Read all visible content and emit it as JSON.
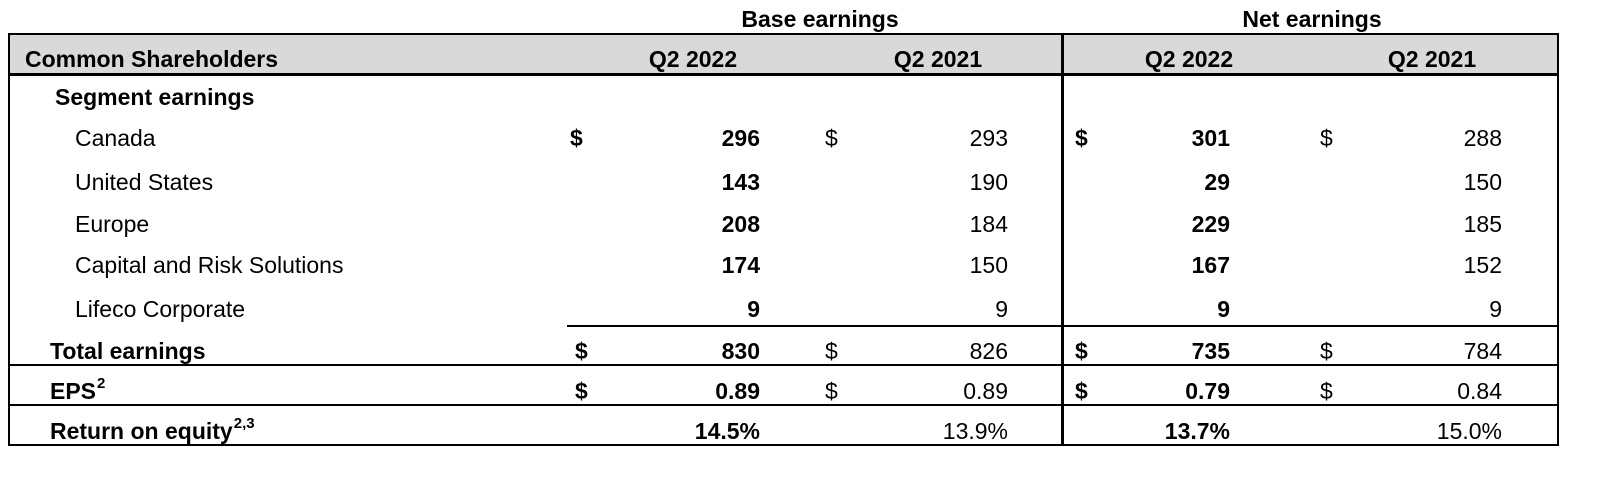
{
  "groups": {
    "base": "Base earnings",
    "net": "Net earnings"
  },
  "header": {
    "label": "Common Shareholders",
    "base_q2_2022": "Q2 2022",
    "base_q2_2021": "Q2 2021",
    "net_q2_2022": "Q2 2022",
    "net_q2_2021": "Q2 2021"
  },
  "segment_title": "Segment earnings",
  "currency": "$",
  "rows": [
    {
      "label": "Canada",
      "base_2022": "296",
      "base_2021": "293",
      "net_2022": "301",
      "net_2021": "288"
    },
    {
      "label": "United States",
      "base_2022": "143",
      "base_2021": "190",
      "net_2022": "29",
      "net_2021": "150"
    },
    {
      "label": "Europe",
      "base_2022": "208",
      "base_2021": "184",
      "net_2022": "229",
      "net_2021": "185"
    },
    {
      "label": "Capital and Risk Solutions",
      "base_2022": "174",
      "base_2021": "150",
      "net_2022": "167",
      "net_2021": "152"
    },
    {
      "label": "Lifeco Corporate",
      "base_2022": "9",
      "base_2021": "9",
      "net_2022": "9",
      "net_2021": "9"
    }
  ],
  "total": {
    "label": "Total earnings",
    "base_2022": "830",
    "base_2021": "826",
    "net_2022": "735",
    "net_2021": "784"
  },
  "eps": {
    "label": "EPS",
    "sup": "2",
    "base_2022": "0.89",
    "base_2021": "0.89",
    "net_2022": "0.79",
    "net_2021": "0.84"
  },
  "roe": {
    "label": "Return on equity",
    "sup": "2,3",
    "base_2022": "14.5%",
    "base_2021": "13.9%",
    "net_2022": "13.7%",
    "net_2021": "15.0%"
  }
}
